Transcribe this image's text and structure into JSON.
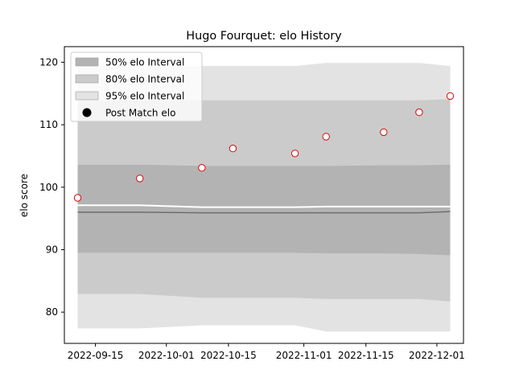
{
  "chart_data": {
    "type": "scatter",
    "title": "Hugo Fourquet: elo History",
    "xlabel": "",
    "ylabel": "elo score",
    "xlim": [
      "2022-09-08",
      "2022-12-07"
    ],
    "ylim": [
      75,
      122.5
    ],
    "x_ticks": [
      "2022-09-15",
      "2022-10-01",
      "2022-10-15",
      "2022-11-01",
      "2022-11-15",
      "2022-12-01"
    ],
    "y_ticks": [
      80,
      90,
      100,
      110,
      120
    ],
    "grid": false,
    "legend_position": "top-left",
    "legend": [
      {
        "label": "50% elo Interval",
        "kind": "band",
        "color": "#b3b3b3"
      },
      {
        "label": "80% elo Interval",
        "kind": "band",
        "color": "#cbcbcb"
      },
      {
        "label": "95% elo Interval",
        "kind": "band",
        "color": "#e3e3e3"
      },
      {
        "label": "Post Match elo",
        "kind": "marker",
        "color": "#000000"
      }
    ],
    "dates": [
      "2022-09-11",
      "2022-09-25",
      "2022-10-09",
      "2022-10-16",
      "2022-10-30",
      "2022-11-06",
      "2022-11-19",
      "2022-11-27",
      "2022-12-04"
    ],
    "post_match_elo": [
      98.3,
      101.4,
      103.1,
      106.2,
      105.4,
      108.1,
      108.8,
      112.0,
      114.6
    ],
    "bands": [
      {
        "name": "95% elo Interval",
        "color": "#e3e3e3",
        "upper": [
          119.4,
          119.4,
          119.4,
          119.4,
          119.4,
          119.9,
          119.9,
          119.9,
          119.4
        ],
        "lower": [
          77.4,
          77.4,
          77.9,
          77.9,
          77.9,
          76.9,
          76.9,
          76.9,
          76.9
        ]
      },
      {
        "name": "80% elo Interval",
        "color": "#cbcbcb",
        "upper": [
          113.9,
          113.9,
          113.9,
          113.9,
          113.9,
          113.9,
          113.9,
          113.9,
          114.1
        ],
        "lower": [
          82.9,
          82.9,
          82.3,
          82.3,
          82.3,
          82.1,
          82.1,
          82.1,
          81.7
        ]
      },
      {
        "name": "50% elo Interval",
        "color": "#b3b3b3",
        "upper": [
          103.6,
          103.6,
          103.4,
          103.4,
          103.4,
          103.4,
          103.5,
          103.5,
          103.6
        ],
        "lower": [
          89.5,
          89.5,
          89.5,
          89.5,
          89.5,
          89.4,
          89.4,
          89.3,
          89.1
        ]
      }
    ],
    "white_line": [
      97.1,
      97.1,
      96.8,
      96.8,
      96.8,
      96.9,
      96.9,
      96.9,
      96.9
    ],
    "dark_line": [
      96.0,
      96.0,
      95.9,
      95.9,
      95.9,
      95.9,
      95.9,
      95.9,
      96.1
    ],
    "marker_face": "#ffffff",
    "marker_edge": "#e00000"
  }
}
